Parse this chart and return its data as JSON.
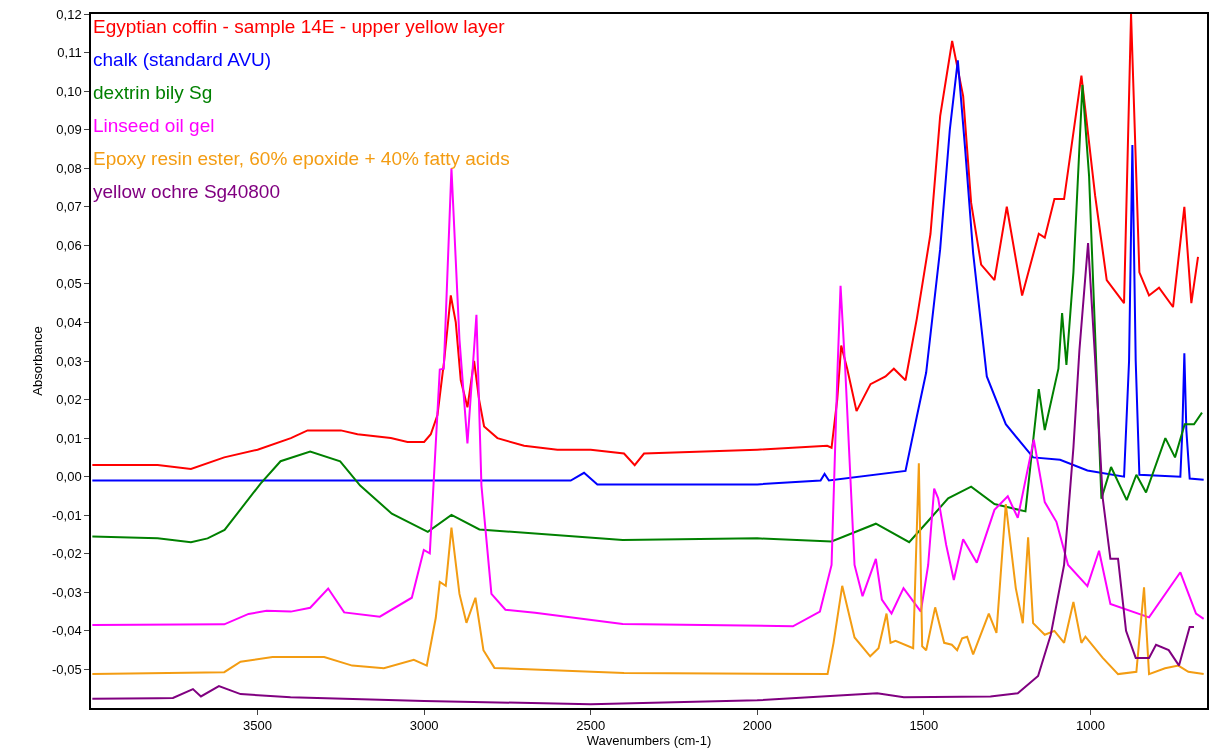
{
  "chart_data": {
    "type": "line",
    "xlabel": "Wavenumbers (cm-1)",
    "ylabel": "Absorbance",
    "xlim": [
      4000,
      650
    ],
    "xticks": [
      3500,
      3000,
      2500,
      2000,
      1500,
      1000
    ],
    "ylim": [
      -0.06,
      0.12
    ],
    "yticks": [
      {
        "value": 0.12,
        "label": "0,12"
      },
      {
        "value": 0.11,
        "label": "0,11"
      },
      {
        "value": 0.1,
        "label": "0,10"
      },
      {
        "value": 0.09,
        "label": "0,09"
      },
      {
        "value": 0.08,
        "label": "0,08"
      },
      {
        "value": 0.07,
        "label": "0,07"
      },
      {
        "value": 0.06,
        "label": "0,06"
      },
      {
        "value": 0.05,
        "label": "0,05"
      },
      {
        "value": 0.04,
        "label": "0,04"
      },
      {
        "value": 0.03,
        "label": "0,03"
      },
      {
        "value": 0.02,
        "label": "0,02"
      },
      {
        "value": 0.01,
        "label": "0,01"
      },
      {
        "value": 0,
        "label": "0,00"
      },
      {
        "value": -0.01,
        "label": "-0,01"
      },
      {
        "value": -0.02,
        "label": "-0,02"
      },
      {
        "value": -0.03,
        "label": "-0,03"
      },
      {
        "value": -0.04,
        "label": "-0,04"
      },
      {
        "value": -0.05,
        "label": "-0,05"
      }
    ],
    "legend": "top left",
    "marker": "none",
    "line_style": "solid",
    "series": [
      {
        "name": "Egyptian coffin - sample 14E - upper yellow layer",
        "color": "#ff0000",
        "x": [
          3996,
          3900,
          3800,
          3700,
          3600,
          3500,
          3400,
          3350,
          3300,
          3250,
          3200,
          3100,
          3050,
          3000,
          2980,
          2960,
          2940,
          2920,
          2905,
          2890,
          2870,
          2850,
          2835,
          2820,
          2780,
          2700,
          2600,
          2520,
          2500,
          2400,
          2368,
          2340,
          2000,
          1790,
          1777,
          1760,
          1748,
          1730,
          1702,
          1660,
          1615,
          1590,
          1555,
          1521,
          1480,
          1451,
          1415,
          1382,
          1358,
          1328,
          1288,
          1251,
          1205,
          1155,
          1137,
          1108,
          1079,
          1027,
          986,
          951,
          899,
          878,
          853,
          824,
          794,
          752,
          718,
          697,
          677
        ],
        "values": [
          0.003,
          0.003,
          0.003,
          0.002,
          0.005,
          0.007,
          0.01,
          0.012,
          0.012,
          0.012,
          0.011,
          0.01,
          0.009,
          0.009,
          0.011,
          0.016,
          0.03,
          0.047,
          0.04,
          0.025,
          0.018,
          0.03,
          0.02,
          0.013,
          0.01,
          0.008,
          0.007,
          0.007,
          0.007,
          0.006,
          0.003,
          0.006,
          0.007,
          0.008,
          0.0075,
          0.02,
          0.034,
          0.028,
          0.017,
          0.024,
          0.026,
          0.028,
          0.025,
          0.041,
          0.063,
          0.0935,
          0.113,
          0.0987,
          0.071,
          0.055,
          0.051,
          0.07,
          0.047,
          0.063,
          0.062,
          0.072,
          0.072,
          0.104,
          0.073,
          0.051,
          0.045,
          0.12,
          0.053,
          0.047,
          0.049,
          0.044,
          0.07,
          0.045,
          0.057
        ]
      },
      {
        "name": "chalk (standard AVU)",
        "color": "#0000ff",
        "x": [
          3996,
          3500,
          3000,
          2560,
          2520,
          2480,
          2000,
          1810,
          1798,
          1785,
          1555,
          1521,
          1493,
          1451,
          1422,
          1398,
          1376,
          1352,
          1311,
          1254,
          1172,
          1091,
          1009,
          899,
          884,
          874,
          864,
          853,
          730,
          724,
          718,
          712,
          702,
          660
        ],
        "values": [
          -0.001,
          -0.001,
          -0.001,
          -0.001,
          0.001,
          -0.002,
          -0.002,
          -0.001,
          0.0007,
          -0.001,
          0.0015,
          0.0156,
          0.027,
          0.059,
          0.09,
          0.108,
          0.085,
          0.058,
          0.026,
          0.0136,
          0.005,
          0.0044,
          0.0016,
          0.0,
          0.03,
          0.086,
          0.03,
          0.0005,
          0.0,
          0.012,
          0.032,
          0.012,
          -0.0005,
          -0.0008
        ]
      },
      {
        "name": "dextrin bily Sg",
        "color": "#008000",
        "x": [
          3996,
          3800,
          3700,
          3650,
          3599,
          3491,
          3431,
          3342,
          3252,
          3192,
          3097,
          2989,
          2918,
          2834,
          2404,
          2000,
          1777,
          1644,
          1544,
          1487,
          1427,
          1358,
          1288,
          1195,
          1155,
          1137,
          1096,
          1085,
          1072,
          1051,
          1024,
          1004,
          967,
          938,
          891,
          862,
          833,
          775,
          746,
          717,
          689,
          665
        ],
        "values": [
          -0.0155,
          -0.016,
          -0.017,
          -0.016,
          -0.0138,
          -0.0018,
          0.004,
          0.0065,
          0.004,
          -0.0023,
          -0.0096,
          -0.0143,
          -0.0099,
          -0.0137,
          -0.0164,
          -0.016,
          -0.0168,
          -0.0122,
          -0.017,
          -0.0115,
          -0.0056,
          -0.0026,
          -0.0071,
          -0.009,
          0.0227,
          0.0121,
          0.028,
          0.0424,
          0.029,
          0.053,
          0.1016,
          0.078,
          -0.0057,
          0.0025,
          -0.0061,
          0.0005,
          -0.0041,
          0.01,
          0.005,
          0.0136,
          0.0136,
          0.0166
        ]
      },
      {
        "name": "Linseed oil gel",
        "color": "#ff00ff",
        "x": [
          3996,
          3600,
          3527,
          3473,
          3400,
          3342,
          3288,
          3240,
          3133,
          3037,
          3001,
          2983,
          2953,
          2941,
          2918,
          2894,
          2870,
          2843,
          2828,
          2798,
          2756,
          2667,
          2404,
          1893,
          1812,
          1777,
          1759,
          1750,
          1736,
          1708,
          1684,
          1644,
          1626,
          1597,
          1561,
          1509,
          1487,
          1469,
          1457,
          1433,
          1410,
          1382,
          1341,
          1288,
          1248,
          1218,
          1170,
          1137,
          1102,
          1067,
          1009,
          974,
          940,
          824,
          730,
          683,
          660
        ],
        "values": [
          -0.0385,
          -0.0383,
          -0.0356,
          -0.0348,
          -0.035,
          -0.034,
          -0.029,
          -0.0352,
          -0.0363,
          -0.0314,
          -0.019,
          -0.0199,
          0.0278,
          0.028,
          0.08,
          0.0356,
          0.0086,
          0.042,
          -0.0023,
          -0.0304,
          -0.0345,
          -0.0353,
          -0.0382,
          -0.0388,
          -0.035,
          -0.0229,
          0.028,
          0.0495,
          0.028,
          -0.0229,
          -0.031,
          -0.0213,
          -0.0319,
          -0.0355,
          -0.0289,
          -0.035,
          -0.0229,
          -0.0031,
          -0.0056,
          -0.0177,
          -0.0268,
          -0.0162,
          -0.0223,
          -0.0086,
          -0.0051,
          -0.0107,
          0.0096,
          -0.0066,
          -0.0117,
          -0.0229,
          -0.0284,
          -0.0192,
          -0.033,
          -0.0365,
          -0.0248,
          -0.0355,
          -0.0369
        ]
      },
      {
        "name": "Epoxy resin ester, 60% epoxide + 40% fatty acids",
        "color": "#f39c12",
        "x": [
          3996,
          3600,
          3551,
          3455,
          3300,
          3216,
          3121,
          3031,
          2992,
          2965,
          2953,
          2935,
          2918,
          2894,
          2873,
          2846,
          2822,
          2789,
          2400,
          1789,
          1771,
          1745,
          1708,
          1661,
          1636,
          1612,
          1600,
          1585,
          1532,
          1515,
          1505,
          1493,
          1466,
          1439,
          1416,
          1400,
          1385,
          1370,
          1352,
          1305,
          1282,
          1254,
          1224,
          1203,
          1187,
          1172,
          1137,
          1108,
          1079,
          1051,
          1027,
          1015,
          963,
          917,
          862,
          839,
          824,
          776,
          736,
          706,
          660
        ],
        "values": [
          -0.0512,
          -0.0507,
          -0.048,
          -0.0468,
          -0.0468,
          -0.049,
          -0.0497,
          -0.0475,
          -0.049,
          -0.0366,
          -0.0273,
          -0.0283,
          -0.0132,
          -0.0304,
          -0.0379,
          -0.0314,
          -0.045,
          -0.0496,
          -0.0509,
          -0.0512,
          -0.0431,
          -0.0283,
          -0.0417,
          -0.0466,
          -0.0445,
          -0.0355,
          -0.0431,
          -0.0426,
          -0.0445,
          0.0035,
          -0.044,
          -0.045,
          -0.0339,
          -0.0431,
          -0.0436,
          -0.045,
          -0.0419,
          -0.0415,
          -0.0461,
          -0.0355,
          -0.0405,
          -0.0071,
          -0.0289,
          -0.038,
          -0.0157,
          -0.038,
          -0.041,
          -0.04,
          -0.0431,
          -0.0325,
          -0.0431,
          -0.0415,
          -0.047,
          -0.0512,
          -0.0506,
          -0.0287,
          -0.0512,
          -0.0497,
          -0.049,
          -0.0506,
          -0.0512
        ]
      },
      {
        "name": "yellow ochre Sg40800",
        "color": "#800080",
        "x": [
          3996,
          3800,
          3754,
          3694,
          3670,
          3616,
          3551,
          3401,
          3000,
          2500,
          2000,
          1640,
          1560,
          1300,
          1218,
          1157,
          1119,
          1079,
          1051,
          1033,
          1007,
          986,
          963,
          940,
          917,
          893,
          864,
          824,
          803,
          765,
          734,
          702,
          689
        ],
        "values": [
          -0.0576,
          -0.0575,
          -0.0574,
          -0.0551,
          -0.057,
          -0.0543,
          -0.0564,
          -0.0572,
          -0.0582,
          -0.059,
          -0.058,
          -0.0562,
          -0.0572,
          -0.057,
          -0.0562,
          -0.0517,
          -0.041,
          -0.0229,
          0.0075,
          0.0328,
          0.0606,
          0.0308,
          -0.0056,
          -0.0213,
          -0.0213,
          -0.04,
          -0.047,
          -0.047,
          -0.0436,
          -0.045,
          -0.049,
          -0.039,
          -0.039
        ]
      }
    ]
  }
}
